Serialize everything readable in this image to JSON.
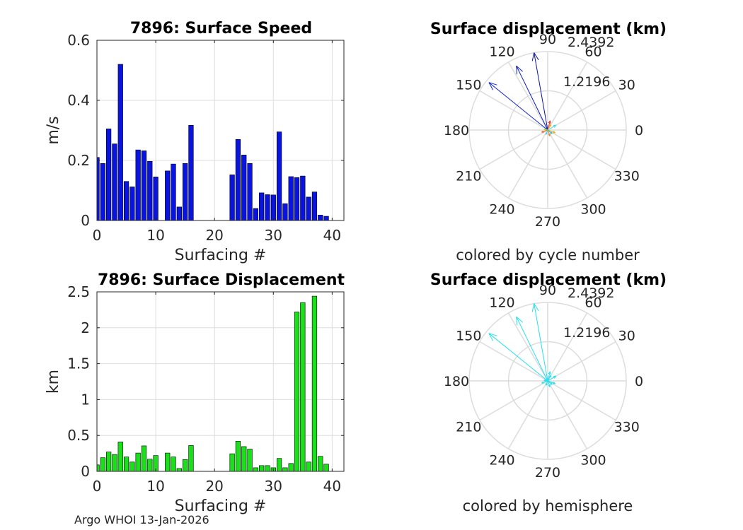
{
  "footer": "Argo WHOI 13-Jan-2026",
  "chart_data": [
    {
      "type": "bar",
      "title": "7896: Surface Speed",
      "xlabel": "Surfacing #",
      "ylabel": "m/s",
      "xlim": [
        0,
        42
      ],
      "ylim": [
        0,
        0.6
      ],
      "xticks": [
        0,
        10,
        20,
        30,
        40
      ],
      "yticks": [
        0,
        0.2,
        0.4,
        0.6
      ],
      "bar_color": "#0a14e0",
      "x": [
        0,
        1,
        2,
        3,
        4,
        5,
        6,
        7,
        8,
        9,
        10,
        12,
        13,
        14,
        15,
        16,
        23,
        24,
        25,
        26,
        27,
        28,
        29,
        30,
        31,
        32,
        33,
        34,
        35,
        36,
        37,
        38,
        39
      ],
      "values": [
        0.21,
        0.19,
        0.305,
        0.255,
        0.52,
        0.13,
        0.112,
        0.235,
        0.232,
        0.197,
        0.145,
        0.165,
        0.188,
        0.045,
        0.19,
        0.317,
        0.152,
        0.27,
        0.218,
        0.19,
        0.04,
        0.092,
        0.086,
        0.085,
        0.295,
        0.056,
        0.146,
        0.143,
        0.148,
        0.078,
        0.095,
        0.018,
        0.014
      ]
    },
    {
      "type": "bar",
      "title": "7896: Surface Displacement",
      "xlabel": "Surfacing #",
      "ylabel": "km",
      "xlim": [
        0,
        42
      ],
      "ylim": [
        0,
        2.5
      ],
      "xticks": [
        0,
        10,
        20,
        30,
        40
      ],
      "yticks": [
        0,
        0.5,
        1,
        1.5,
        2,
        2.5
      ],
      "bar_color": "#1ae01a",
      "x": [
        0,
        1,
        2,
        3,
        4,
        5,
        6,
        7,
        8,
        9,
        10,
        12,
        13,
        14,
        15,
        16,
        23,
        24,
        25,
        26,
        27,
        28,
        29,
        30,
        31,
        32,
        33,
        34,
        35,
        36,
        37,
        38,
        39
      ],
      "values": [
        0.09,
        0.19,
        0.27,
        0.235,
        0.41,
        0.2,
        0.13,
        0.255,
        0.355,
        0.17,
        0.22,
        0.255,
        0.2,
        0.04,
        0.165,
        0.36,
        0.245,
        0.42,
        0.345,
        0.31,
        0.05,
        0.08,
        0.08,
        0.05,
        0.18,
        0.05,
        0.11,
        2.22,
        2.35,
        0.13,
        2.44,
        0.21,
        0.1
      ]
    },
    {
      "type": "polar",
      "title": "Surface displacement (km)",
      "caption": "colored by cycle number",
      "rmax": 2.4392,
      "rtick_labels": [
        "1.2196",
        "2.4392"
      ],
      "angle_labels": [
        "0",
        "30",
        "60",
        "90",
        "120",
        "150",
        "180",
        "210",
        "240",
        "270",
        "300",
        "330"
      ],
      "arrows": [
        {
          "angle": 100,
          "r": 2.44,
          "color": "#0a14a0"
        },
        {
          "angle": 116,
          "r": 2.22,
          "color": "#0a1ec0"
        },
        {
          "angle": 141,
          "r": 2.35,
          "color": "#1028d0"
        },
        {
          "angle": 75,
          "r": 0.3,
          "color": "#e03020"
        },
        {
          "angle": 60,
          "r": 0.2,
          "color": "#f0a020"
        },
        {
          "angle": 30,
          "r": 0.3,
          "color": "#40e0f0"
        },
        {
          "angle": 340,
          "r": 0.25,
          "color": "#e0b010"
        },
        {
          "angle": 200,
          "r": 0.2,
          "color": "#f06010"
        },
        {
          "angle": 250,
          "r": 0.15,
          "color": "#50d0f0"
        },
        {
          "angle": 170,
          "r": 0.12,
          "color": "#a0e040"
        },
        {
          "angle": 290,
          "r": 0.2,
          "color": "#f08020"
        },
        {
          "angle": 320,
          "r": 0.18,
          "color": "#30c0e0"
        }
      ]
    },
    {
      "type": "polar",
      "title": "Surface displacement (km)",
      "caption": "colored by hemisphere",
      "rmax": 2.4392,
      "rtick_labels": [
        "1.2196",
        "2.4392"
      ],
      "angle_labels": [
        "0",
        "30",
        "60",
        "90",
        "120",
        "150",
        "180",
        "210",
        "240",
        "270",
        "300",
        "330"
      ],
      "arrows": [
        {
          "angle": 100,
          "r": 2.44,
          "color": "#22e0f0"
        },
        {
          "angle": 116,
          "r": 2.22,
          "color": "#22e0f0"
        },
        {
          "angle": 141,
          "r": 2.35,
          "color": "#22e0f0"
        },
        {
          "angle": 75,
          "r": 0.3,
          "color": "#22e0f0"
        },
        {
          "angle": 60,
          "r": 0.2,
          "color": "#22e0f0"
        },
        {
          "angle": 30,
          "r": 0.3,
          "color": "#22e0f0"
        },
        {
          "angle": 340,
          "r": 0.25,
          "color": "#22e0f0"
        },
        {
          "angle": 200,
          "r": 0.2,
          "color": "#22e0f0"
        },
        {
          "angle": 250,
          "r": 0.15,
          "color": "#22e0f0"
        },
        {
          "angle": 170,
          "r": 0.12,
          "color": "#22e0f0"
        },
        {
          "angle": 290,
          "r": 0.2,
          "color": "#22e0f0"
        },
        {
          "angle": 320,
          "r": 0.18,
          "color": "#22e0f0"
        }
      ]
    }
  ]
}
